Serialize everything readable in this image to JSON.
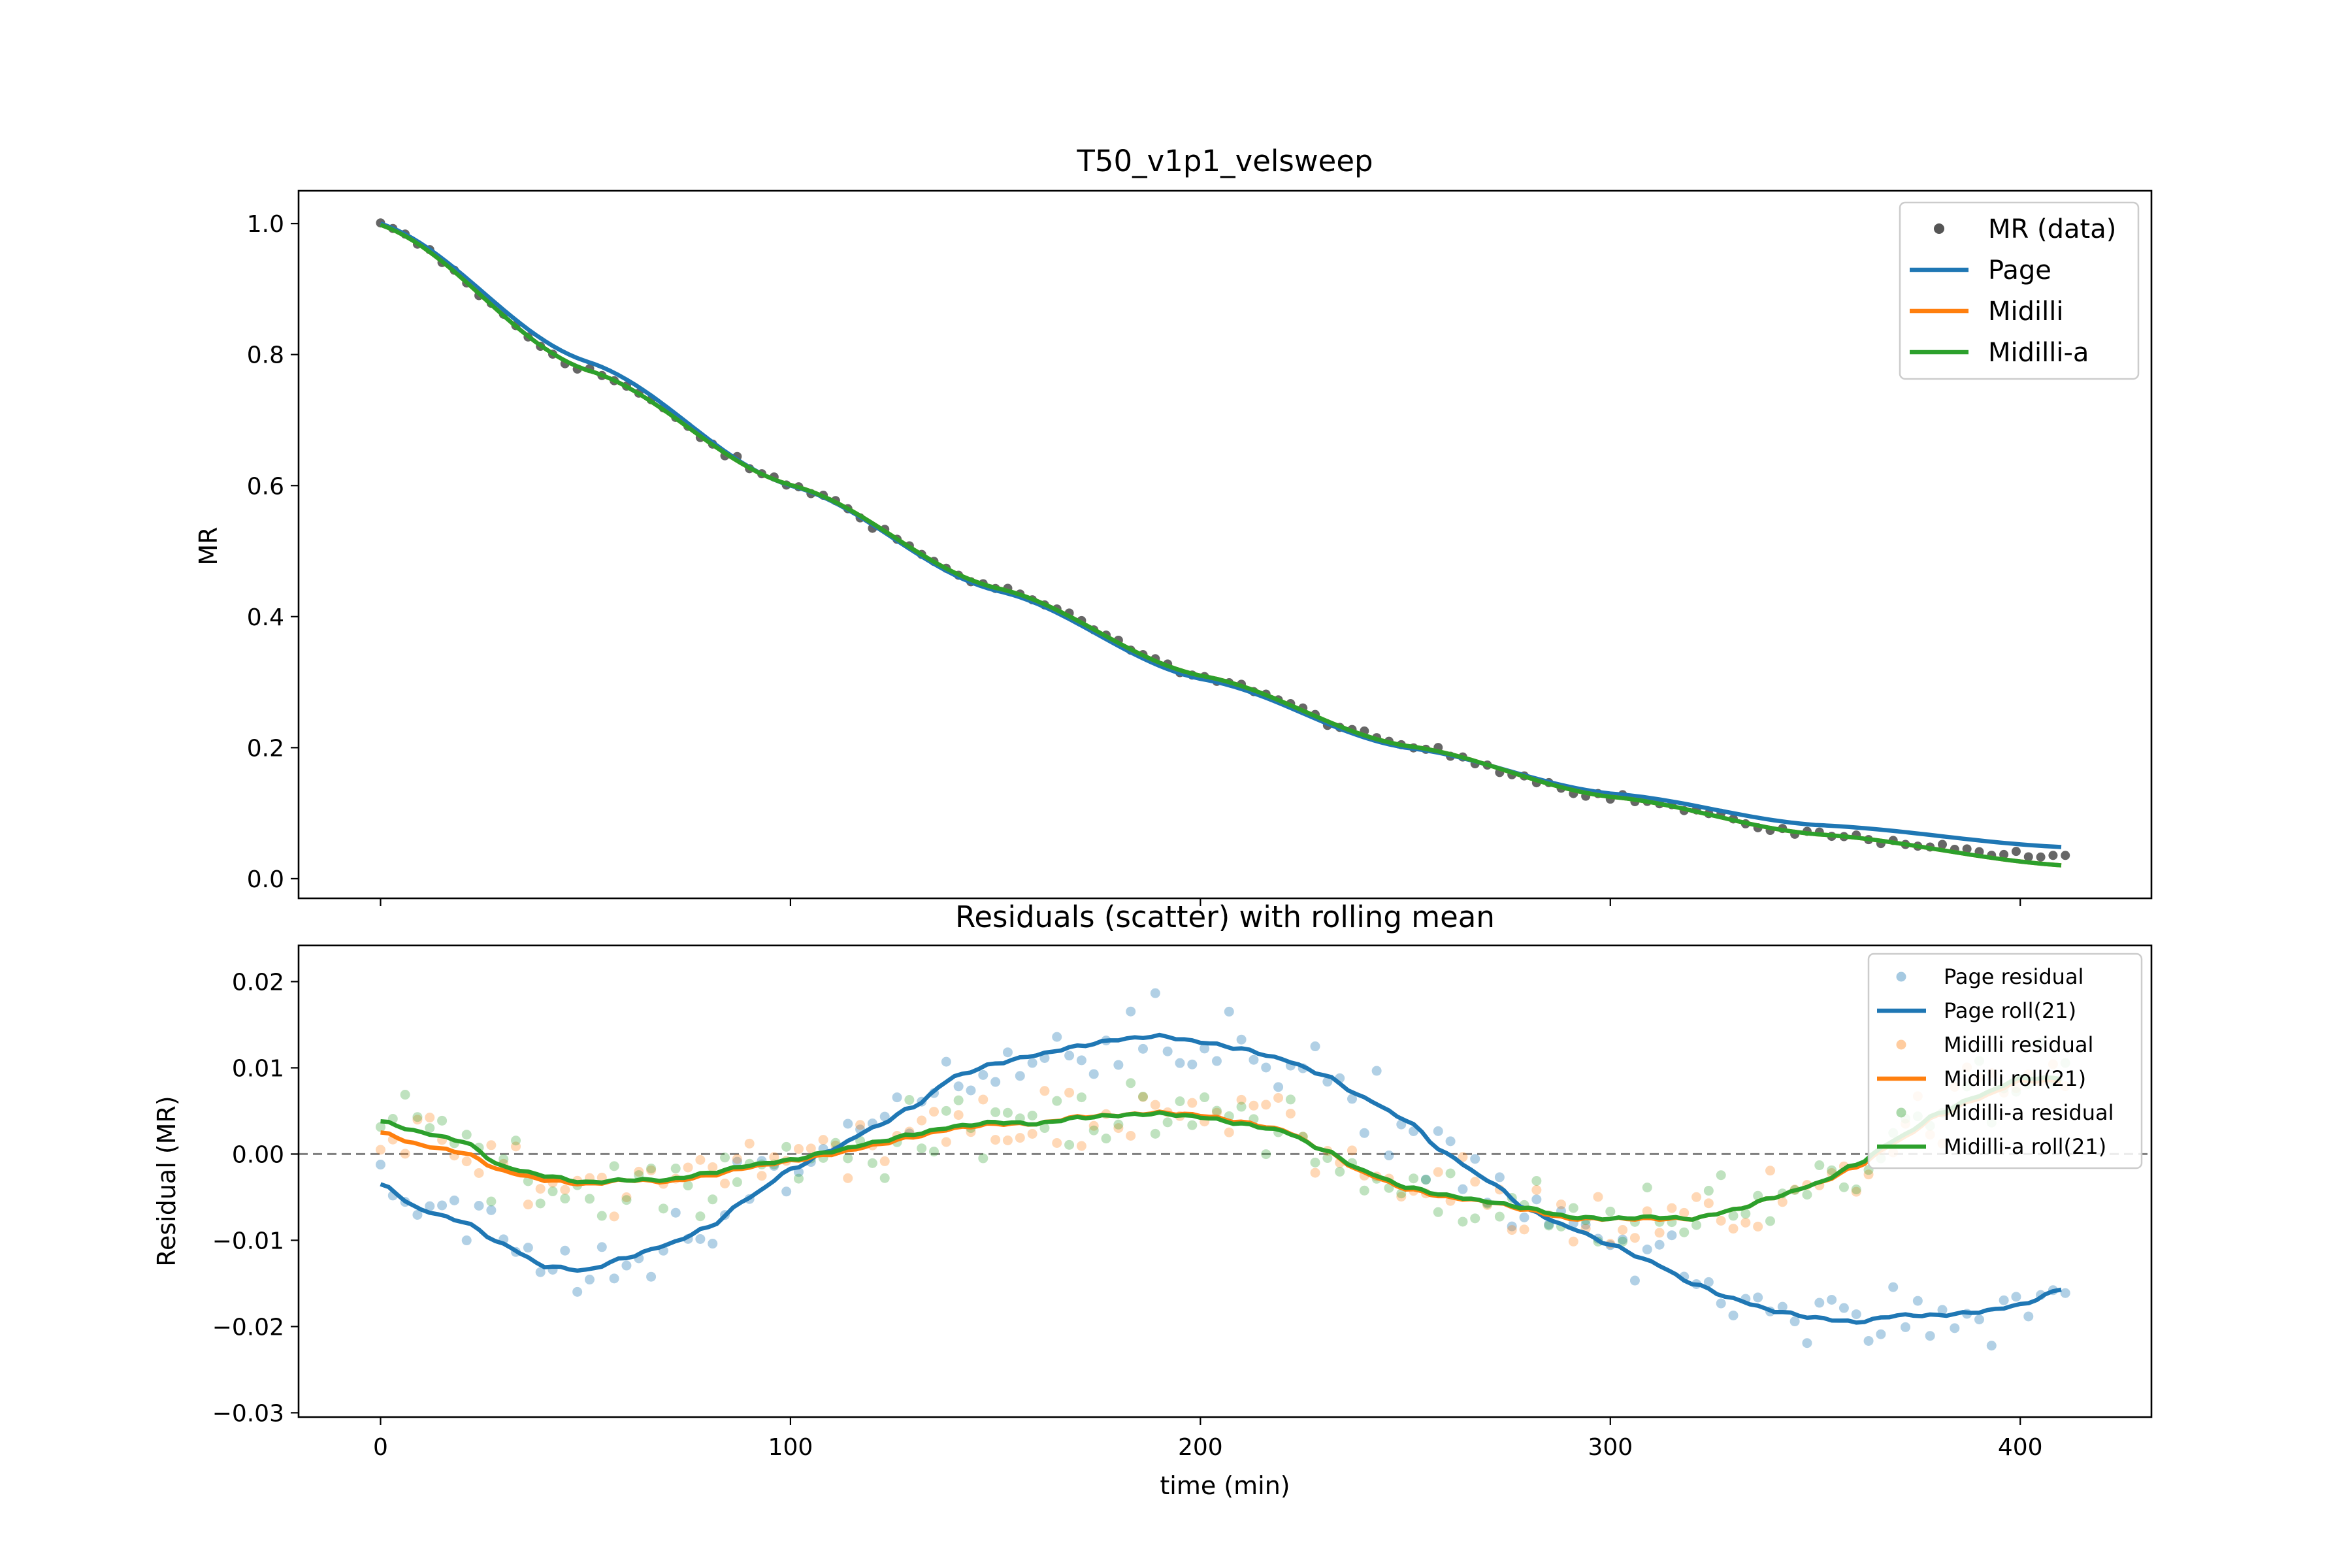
{
  "chart_data": [
    {
      "type": "line",
      "title": "T50_v1p1_velsweep",
      "xlabel": "",
      "ylabel": "MR",
      "xlim": [
        -20,
        432
      ],
      "ylim": [
        -0.03,
        1.05
      ],
      "x_ticks": [
        0,
        100,
        200,
        300,
        400
      ],
      "y_ticks": [
        "0.0",
        "0.2",
        "0.4",
        "0.6",
        "0.8",
        "1.0"
      ],
      "legend_position": "upper right",
      "legend": [
        "MR (data)",
        "Page",
        "Midilli",
        "Midilli-a"
      ],
      "colors": {
        "data": "#555555",
        "page": "#1f77b4",
        "midilli": "#ff7f0e",
        "midilli_a": "#2ca02c"
      },
      "series": [
        {
          "name": "MR (data)",
          "kind": "scatter",
          "x_start": 0,
          "x_end": 411,
          "n_points": 138,
          "note_values": "follows fitted curve, ends at ~0.035"
        },
        {
          "name": "Page",
          "x": [
            0,
            50,
            100,
            150,
            200,
            250,
            300,
            350,
            411
          ],
          "y": [
            1.0,
            0.79,
            0.6,
            0.44,
            0.305,
            0.2,
            0.13,
            0.082,
            0.048
          ]
        },
        {
          "name": "Midilli",
          "x": [
            0,
            50,
            100,
            150,
            200,
            250,
            300,
            350,
            411
          ],
          "y": [
            0.998,
            0.777,
            0.601,
            0.444,
            0.31,
            0.203,
            0.125,
            0.068,
            0.02
          ]
        },
        {
          "name": "Midilli-a",
          "x": [
            0,
            50,
            100,
            150,
            200,
            250,
            300,
            350,
            411
          ],
          "y": [
            0.998,
            0.777,
            0.601,
            0.444,
            0.31,
            0.203,
            0.125,
            0.068,
            0.02
          ]
        }
      ]
    },
    {
      "type": "scatter",
      "title": "Residuals (scatter) with rolling mean",
      "xlabel": "time (min)",
      "ylabel": "Residual (MR)",
      "xlim": [
        -20,
        432
      ],
      "ylim": [
        -0.0305,
        0.0242
      ],
      "x_ticks": [
        "0",
        "100",
        "200",
        "300",
        "400"
      ],
      "y_ticks": [
        "0.02",
        "0.01",
        "0.00",
        "−0.01",
        "−0.02",
        "−0.03"
      ],
      "zero_line": true,
      "legend_position": "upper right",
      "legend": [
        "Page residual",
        "Page roll(21)",
        "Midilli residual",
        "Midilli roll(21)",
        "Midilli-a residual",
        "Midilli-a roll(21)"
      ],
      "series": [
        {
          "name": "Page roll(21)",
          "x": [
            0,
            10,
            20,
            30,
            40,
            50,
            60,
            70,
            80,
            90,
            100,
            110,
            120,
            130,
            140,
            150,
            160,
            170,
            180,
            190,
            200,
            210,
            220,
            230,
            240,
            250,
            260,
            270,
            280,
            290,
            300,
            310,
            320,
            330,
            340,
            350,
            360,
            370,
            380,
            390,
            400,
            411
          ],
          "y": [
            -0.0035,
            -0.0065,
            -0.0078,
            -0.0105,
            -0.013,
            -0.0135,
            -0.012,
            -0.0105,
            -0.0085,
            -0.005,
            -0.0018,
            0.0005,
            0.003,
            0.0055,
            0.009,
            0.0105,
            0.0115,
            0.0125,
            0.0133,
            0.0137,
            0.013,
            0.0122,
            0.011,
            0.0092,
            0.0065,
            0.004,
            0.0,
            -0.003,
            -0.0065,
            -0.0085,
            -0.0105,
            -0.0125,
            -0.015,
            -0.0168,
            -0.0182,
            -0.019,
            -0.0195,
            -0.0187,
            -0.0187,
            -0.0183,
            -0.0175,
            -0.0155
          ]
        },
        {
          "name": "Midilli roll(21)",
          "x": [
            0,
            10,
            20,
            30,
            40,
            50,
            60,
            70,
            80,
            90,
            100,
            110,
            120,
            130,
            140,
            150,
            160,
            170,
            180,
            190,
            200,
            210,
            220,
            230,
            240,
            250,
            260,
            270,
            280,
            290,
            300,
            310,
            320,
            330,
            340,
            350,
            360,
            370,
            380,
            390,
            400,
            411
          ],
          "y": [
            0.0025,
            0.001,
            0.0002,
            -0.002,
            -0.003,
            -0.0035,
            -0.003,
            -0.0032,
            -0.0025,
            -0.0015,
            -0.0008,
            0.0,
            0.001,
            0.002,
            0.003,
            0.0035,
            0.0035,
            0.0043,
            0.0045,
            0.0048,
            0.0045,
            0.0037,
            0.0028,
            0.0005,
            -0.0022,
            -0.004,
            -0.005,
            -0.0055,
            -0.0065,
            -0.0075,
            -0.0075,
            -0.0075,
            -0.0075,
            -0.0065,
            -0.005,
            -0.0035,
            -0.0015,
            0.0015,
            0.0045,
            0.0065,
            0.0085,
            0.0085
          ]
        },
        {
          "name": "Midilli-a roll(21)",
          "x": [
            0,
            10,
            20,
            30,
            40,
            50,
            60,
            70,
            80,
            90,
            100,
            110,
            120,
            130,
            140,
            150,
            160,
            170,
            180,
            190,
            200,
            210,
            220,
            230,
            240,
            250,
            260,
            270,
            280,
            290,
            300,
            310,
            320,
            330,
            340,
            350,
            360,
            370,
            380,
            390,
            400,
            411
          ],
          "y": [
            0.0038,
            0.0025,
            0.0015,
            -0.0015,
            -0.0025,
            -0.0033,
            -0.003,
            -0.003,
            -0.0022,
            -0.0013,
            -0.0007,
            0.0003,
            0.0013,
            0.0023,
            0.0032,
            0.0037,
            0.0035,
            0.0042,
            0.0045,
            0.0047,
            0.0043,
            0.0035,
            0.0027,
            0.0005,
            -0.002,
            -0.0038,
            -0.0048,
            -0.0055,
            -0.0063,
            -0.0073,
            -0.0075,
            -0.0073,
            -0.0075,
            -0.0065,
            -0.005,
            -0.0035,
            -0.0012,
            0.0018,
            0.0047,
            0.0068,
            0.0088,
            0.0088
          ]
        }
      ],
      "residual_scatter_note": "per-point residuals scattered around each rolling mean (Page, Midilli, Midilli-a)"
    }
  ]
}
